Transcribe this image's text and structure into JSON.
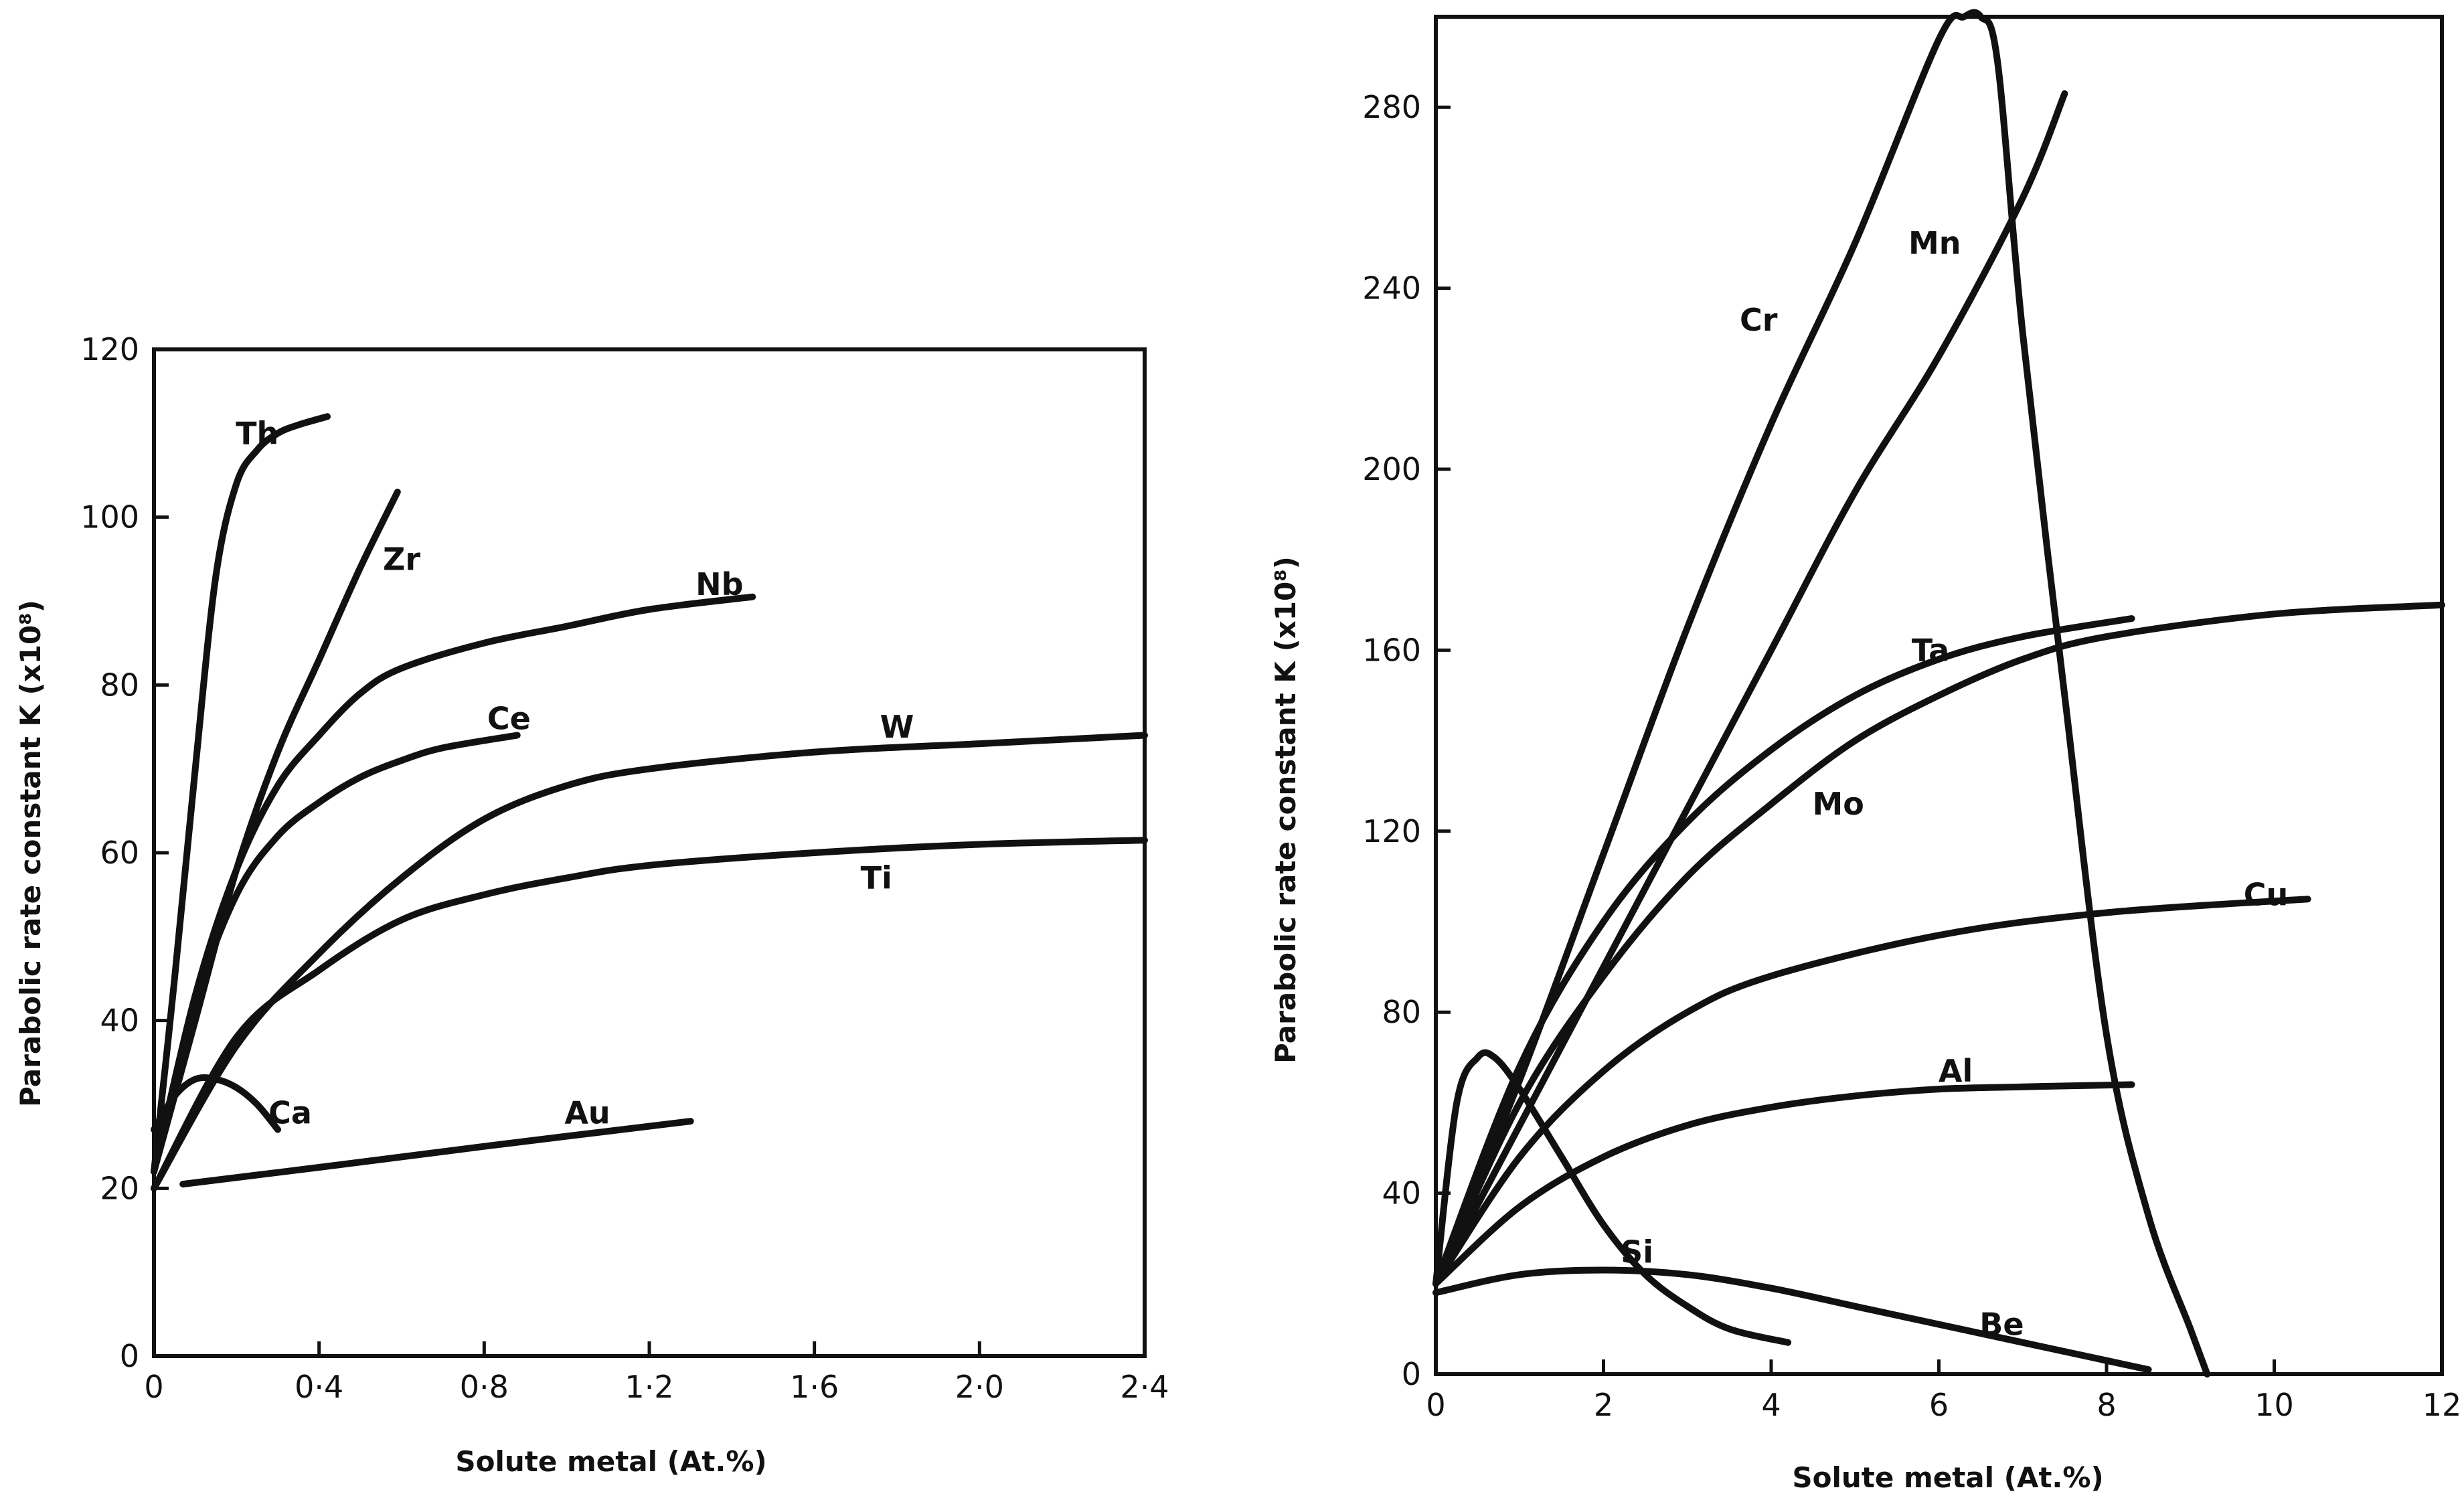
{
  "chart_data": [
    {
      "type": "line",
      "title": "",
      "xlabel": "Solute metal (At.%)",
      "ylabel": "Parabolic rate constant K (x10⁸)",
      "xlim": [
        0,
        2.4
      ],
      "ylim": [
        0,
        120
      ],
      "xticks": [
        0,
        0.4,
        0.8,
        1.2,
        1.6,
        2.0,
        2.4
      ],
      "xtick_labels": [
        "0",
        "0·4",
        "0·8",
        "1·2",
        "1·6",
        "2·0",
        "2·4"
      ],
      "yticks": [
        0,
        20,
        40,
        60,
        80,
        100,
        120
      ],
      "ytick_labels": [
        "0",
        "20",
        "40",
        "60",
        "80",
        "100",
        "120"
      ],
      "grid": false,
      "series": [
        {
          "name": "Th",
          "label_at": [
            0.25,
            110
          ],
          "x": [
            0,
            0.05,
            0.1,
            0.15,
            0.2,
            0.25,
            0.3,
            0.35,
            0.42
          ],
          "y": [
            22,
            45,
            70,
            93,
            104,
            108,
            110,
            111,
            112
          ]
        },
        {
          "name": "Zr",
          "label_at": [
            0.6,
            95
          ],
          "x": [
            0,
            0.1,
            0.2,
            0.3,
            0.4,
            0.5,
            0.59
          ],
          "y": [
            22,
            40,
            58,
            72,
            83,
            94,
            103
          ]
        },
        {
          "name": "Nb",
          "label_at": [
            1.37,
            92
          ],
          "x": [
            0,
            0.1,
            0.2,
            0.3,
            0.4,
            0.5,
            0.6,
            0.8,
            1.0,
            1.2,
            1.45
          ],
          "y": [
            22,
            43,
            58,
            68,
            74,
            79,
            82,
            85,
            87,
            89,
            90.5
          ]
        },
        {
          "name": "Ce",
          "label_at": [
            0.86,
            76
          ],
          "x": [
            0,
            0.1,
            0.2,
            0.3,
            0.4,
            0.5,
            0.6,
            0.7,
            0.88
          ],
          "y": [
            22,
            42,
            55,
            62,
            66,
            69,
            71,
            72.5,
            74
          ]
        },
        {
          "name": "W",
          "label_at": [
            1.8,
            75
          ],
          "x": [
            0,
            0.2,
            0.4,
            0.6,
            0.8,
            1.0,
            1.2,
            1.6,
            2.0,
            2.4
          ],
          "y": [
            20,
            37,
            48,
            57,
            64,
            68,
            70,
            72,
            73,
            74
          ]
        },
        {
          "name": "Ti",
          "label_at": [
            1.75,
            57
          ],
          "x": [
            0,
            0.2,
            0.4,
            0.6,
            0.8,
            1.0,
            1.2,
            1.6,
            2.0,
            2.4
          ],
          "y": [
            20,
            38,
            46,
            52,
            55,
            57,
            58.5,
            60,
            61,
            61.5
          ]
        },
        {
          "name": "Ca",
          "label_at": [
            0.33,
            29
          ],
          "x": [
            0,
            0.05,
            0.1,
            0.15,
            0.2,
            0.25,
            0.3
          ],
          "y": [
            27,
            31,
            33,
            33,
            32,
            30,
            27
          ]
        },
        {
          "name": "Au",
          "label_at": [
            1.05,
            29
          ],
          "x": [
            0.07,
            0.4,
            0.8,
            1.3
          ],
          "y": [
            20.5,
            22.5,
            25,
            28
          ]
        }
      ]
    },
    {
      "type": "line",
      "title": "",
      "xlabel": "Solute metal (At.%)",
      "ylabel": "Parabolic rate constant K (x10⁸)",
      "xlim": [
        0,
        12
      ],
      "ylim": [
        0,
        300
      ],
      "xticks": [
        0,
        2,
        4,
        6,
        8,
        10,
        12
      ],
      "xtick_labels": [
        "0",
        "2",
        "4",
        "6",
        "8",
        "10",
        "12"
      ],
      "yticks": [
        0,
        40,
        80,
        120,
        160,
        200,
        240,
        280
      ],
      "ytick_labels": [
        "0",
        "40",
        "80",
        "120",
        "160",
        "200",
        "240",
        "280"
      ],
      "grid": false,
      "series": [
        {
          "name": "Cr",
          "label_at": [
            3.85,
            233
          ],
          "x": [
            0,
            1,
            2,
            3,
            4,
            5,
            6,
            6.3,
            6.5,
            6.7,
            7,
            7.5,
            8,
            8.5,
            9,
            9.2
          ],
          "y": [
            20,
            65,
            115,
            165,
            210,
            250,
            295,
            300,
            300,
            290,
            230,
            150,
            75,
            35,
            10,
            0
          ]
        },
        {
          "name": "Mn",
          "label_at": [
            5.95,
            250
          ],
          "x": [
            0,
            1,
            2,
            3,
            4,
            5,
            6,
            7,
            7.5
          ],
          "y": [
            20,
            55,
            90,
            125,
            160,
            195,
            225,
            260,
            283
          ]
        },
        {
          "name": "Ta",
          "label_at": [
            5.9,
            160
          ],
          "x": [
            0,
            1,
            2,
            3,
            4,
            5,
            6,
            7,
            8.3
          ],
          "y": [
            20,
            68,
            100,
            122,
            138,
            150,
            158,
            163,
            167
          ]
        },
        {
          "name": "Mo",
          "label_at": [
            4.8,
            126
          ],
          "x": [
            0,
            1,
            2,
            3,
            4,
            5,
            6,
            7,
            8,
            10,
            12
          ],
          "y": [
            20,
            60,
            88,
            110,
            126,
            140,
            150,
            158,
            163,
            168,
            170
          ]
        },
        {
          "name": "Cu",
          "label_at": [
            9.9,
            106
          ],
          "x": [
            0,
            1,
            2,
            3,
            4,
            6,
            8,
            10.4
          ],
          "y": [
            20,
            48,
            67,
            80,
            88,
            97,
            102,
            105
          ]
        },
        {
          "name": "Al",
          "label_at": [
            6.2,
            67
          ],
          "x": [
            0,
            1,
            2,
            3,
            4,
            5,
            6,
            7,
            8.3
          ],
          "y": [
            20,
            37,
            48,
            55,
            59,
            61.5,
            63,
            63.5,
            64
          ]
        },
        {
          "name": "Si",
          "label_at": [
            2.4,
            27
          ],
          "x": [
            0,
            0.25,
            0.5,
            0.7,
            1,
            1.5,
            2,
            2.5,
            3,
            3.5,
            4.2
          ],
          "y": [
            20,
            60,
            70,
            70,
            63,
            48,
            33,
            22,
            15,
            10,
            7
          ]
        },
        {
          "name": "Be",
          "label_at": [
            6.75,
            11
          ],
          "x": [
            0,
            1,
            2,
            3,
            4,
            5,
            6,
            7,
            8,
            8.5
          ],
          "y": [
            18,
            22,
            23,
            22,
            19,
            15,
            11,
            7,
            3,
            1
          ]
        }
      ]
    }
  ]
}
